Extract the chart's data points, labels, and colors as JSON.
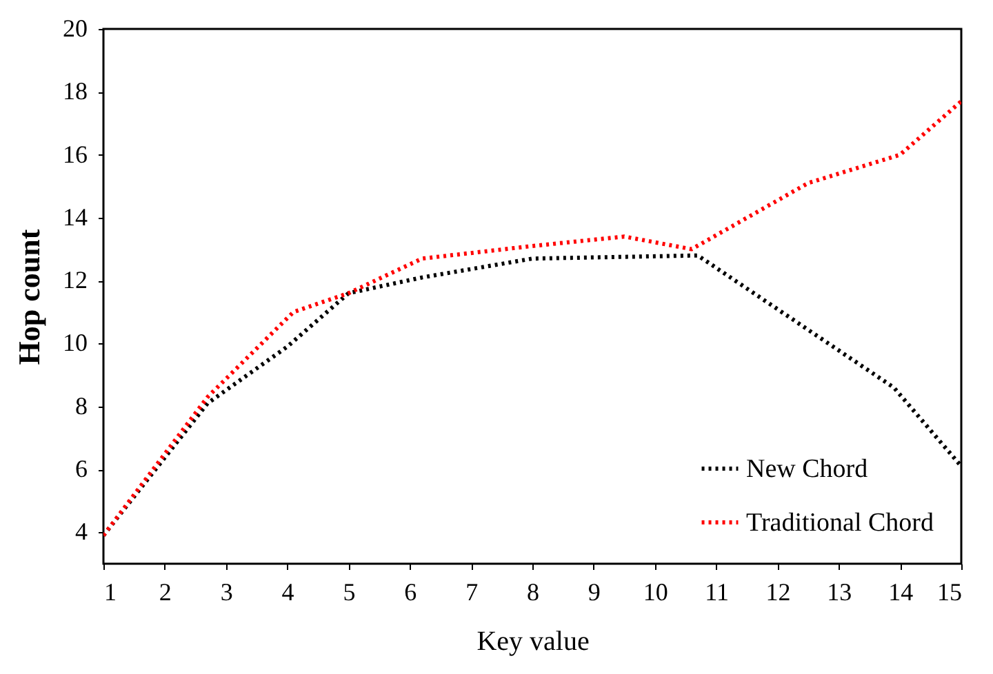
{
  "chart_data": {
    "type": "line",
    "xlabel": "Key value",
    "ylabel": "Hop count",
    "xlim": [
      1,
      15
    ],
    "xticks": [
      1,
      2,
      3,
      4,
      5,
      6,
      7,
      8,
      9,
      10,
      11,
      12,
      13,
      14,
      15
    ],
    "ylim": [
      3,
      20
    ],
    "yticks": [
      4,
      6,
      8,
      10,
      12,
      14,
      16,
      18,
      20
    ],
    "grid": false,
    "legend": "bottom right",
    "line_style": "dotted",
    "marker": "none",
    "series": [
      {
        "name": "New Chord",
        "color": "#000000",
        "x": [
          1,
          2.7,
          4,
          5,
          6.2,
          8,
          10.7,
          12.3,
          13.9,
          15
        ],
        "values": [
          3.9,
          8.1,
          9.9,
          11.6,
          12.1,
          12.7,
          12.8,
          10.7,
          8.6,
          6.1
        ]
      },
      {
        "name": "Traditional Chord",
        "color": "#ff0000",
        "x": [
          1,
          2.7,
          4.1,
          5,
          6.2,
          8,
          9.5,
          10.6,
          12.5,
          14,
          15
        ],
        "values": [
          3.9,
          8.3,
          11,
          11.6,
          12.7,
          13.1,
          13.4,
          13,
          15.1,
          16,
          17.7
        ]
      }
    ]
  }
}
